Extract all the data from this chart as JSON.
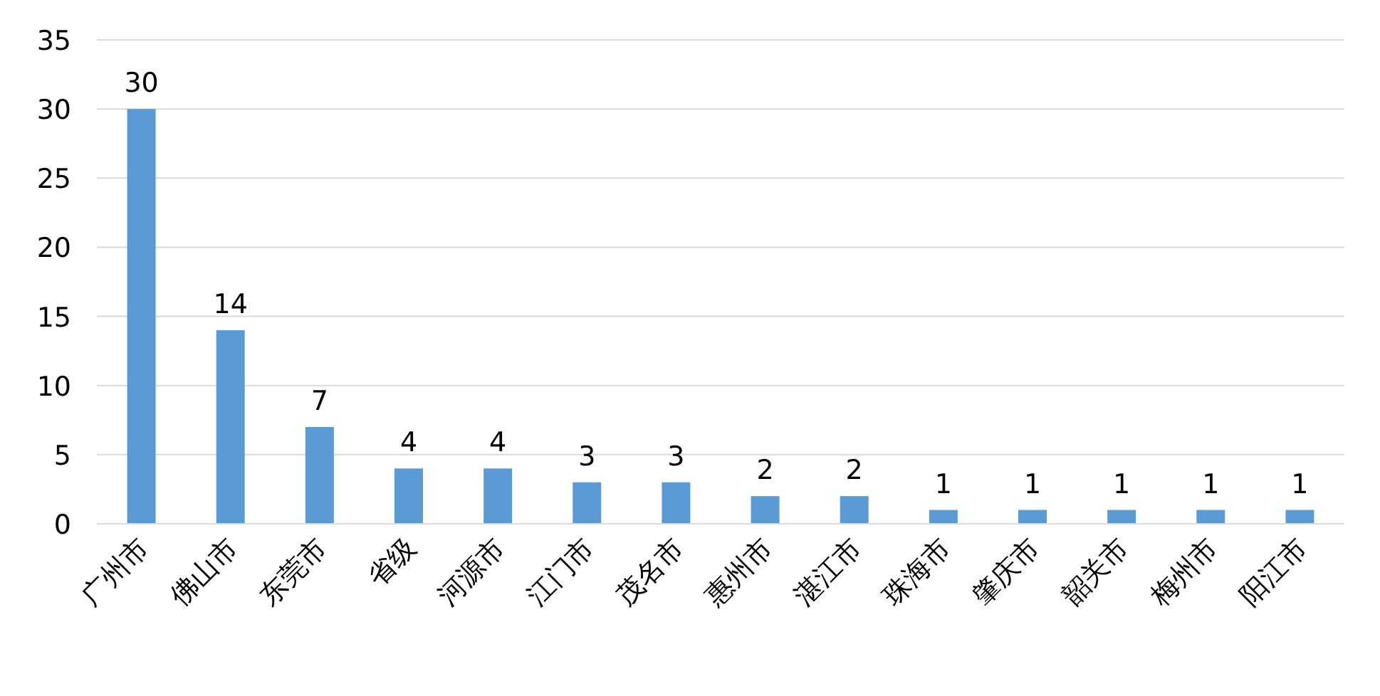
{
  "chart_data": {
    "type": "bar",
    "categories": [
      "广州市",
      "佛山市",
      "东莞市",
      "省级",
      "河源市",
      "江门市",
      "茂名市",
      "惠州市",
      "湛江市",
      "珠海市",
      "肇庆市",
      "韶关市",
      "梅州市",
      "阳江市"
    ],
    "values": [
      30,
      14,
      7,
      4,
      4,
      3,
      3,
      2,
      2,
      1,
      1,
      1,
      1,
      1
    ],
    "color": "#5b9bd5",
    "ylim": [
      0,
      35
    ],
    "yticks": [
      0,
      5,
      10,
      15,
      20,
      25,
      30,
      35
    ],
    "grid": "y",
    "data_labels": true
  }
}
